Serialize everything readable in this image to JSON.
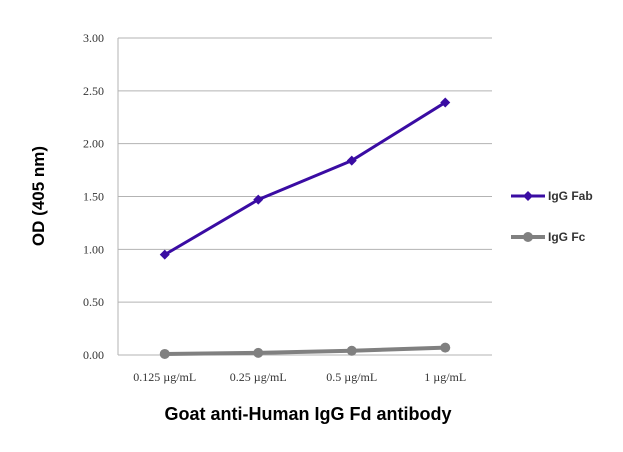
{
  "chart_data": {
    "type": "line",
    "title": "",
    "xlabel": "Goat anti-Human IgG Fd antibody",
    "ylabel": "OD (405 nm)",
    "categories": [
      "0.125 µg/mL",
      "0.25 µg/mL",
      "0.5 µg/mL",
      "1 µg/mL"
    ],
    "ylim": [
      0,
      3
    ],
    "yticks": [
      "0.00",
      "0.50",
      "1.00",
      "1.50",
      "2.00",
      "2.50",
      "3.00"
    ],
    "ytick_values": [
      0,
      0.5,
      1,
      1.5,
      2,
      2.5,
      3
    ],
    "grid": true,
    "legend_position": "right",
    "series": [
      {
        "name": "IgG Fab",
        "values": [
          0.95,
          1.47,
          1.84,
          2.39
        ],
        "color": "#3a0ca3",
        "marker": "diamond"
      },
      {
        "name": "IgG Fc",
        "values": [
          0.01,
          0.02,
          0.04,
          0.07
        ],
        "color": "#808080",
        "marker": "circle"
      }
    ]
  }
}
